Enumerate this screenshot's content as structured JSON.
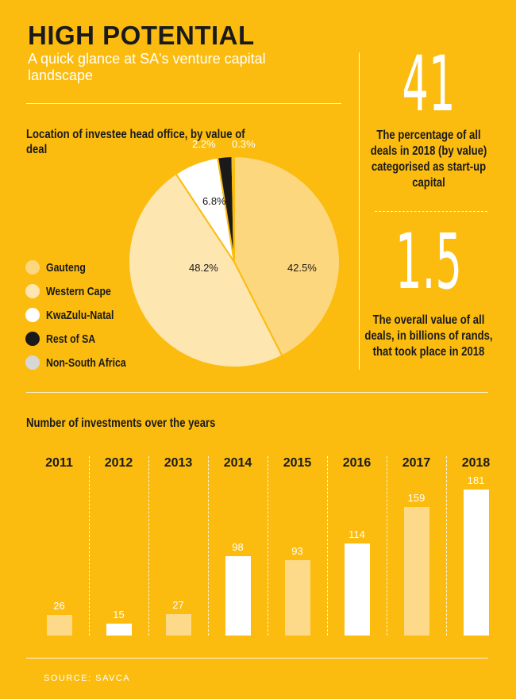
{
  "header": {
    "title": "HIGH POTENTIAL",
    "subtitle": "A quick glance at SA's venture capital landscape"
  },
  "stats": [
    {
      "number": "41",
      "text": "The percentage of all deals in 2018 (by value) categorised as start-up capital"
    },
    {
      "number": "1.5",
      "text": "The overall value of all deals, in billions of rands, that took place in 2018"
    }
  ],
  "source": "SOURCE: SAVCA",
  "colors": {
    "background": "#FBBC0F",
    "gauteng": "#FDD77E",
    "western_cape": "#FDE6B0",
    "kwazulu_natal": "#FFFFFF",
    "rest_of_sa": "#1A1A1A",
    "non_south_africa": "#D7D7D7",
    "bar_light": "#FDD98A",
    "bar_white": "#FFFFFF"
  },
  "chart_data": [
    {
      "type": "pie",
      "title": "Location of investee head office, by value of deal",
      "labels": [
        "Gauteng",
        "Western Cape",
        "KwaZulu-Natal",
        "Rest of SA",
        "Non-South Africa"
      ],
      "values": [
        42.5,
        48.2,
        6.8,
        2.2,
        0.3
      ],
      "value_labels": [
        "42.5%",
        "48.2%",
        "6.8%",
        "2.2%",
        "0.3%"
      ],
      "colors": [
        "#FDD77E",
        "#FDE6B0",
        "#FFFFFF",
        "#1A1A1A",
        "#D7D7D7"
      ],
      "legend": "left"
    },
    {
      "type": "bar",
      "title": "Number of investments over the years",
      "categories": [
        "2011",
        "2012",
        "2013",
        "2014",
        "2015",
        "2016",
        "2017",
        "2018"
      ],
      "values": [
        26,
        15,
        27,
        98,
        93,
        114,
        159,
        181
      ],
      "bar_colors": [
        "#FDD98A",
        "#FFFFFF",
        "#FDD98A",
        "#FFFFFF",
        "#FDD98A",
        "#FFFFFF",
        "#FDD98A",
        "#FFFFFF"
      ],
      "xlabel": "",
      "ylabel": "",
      "ylim": [
        0,
        181
      ]
    }
  ]
}
